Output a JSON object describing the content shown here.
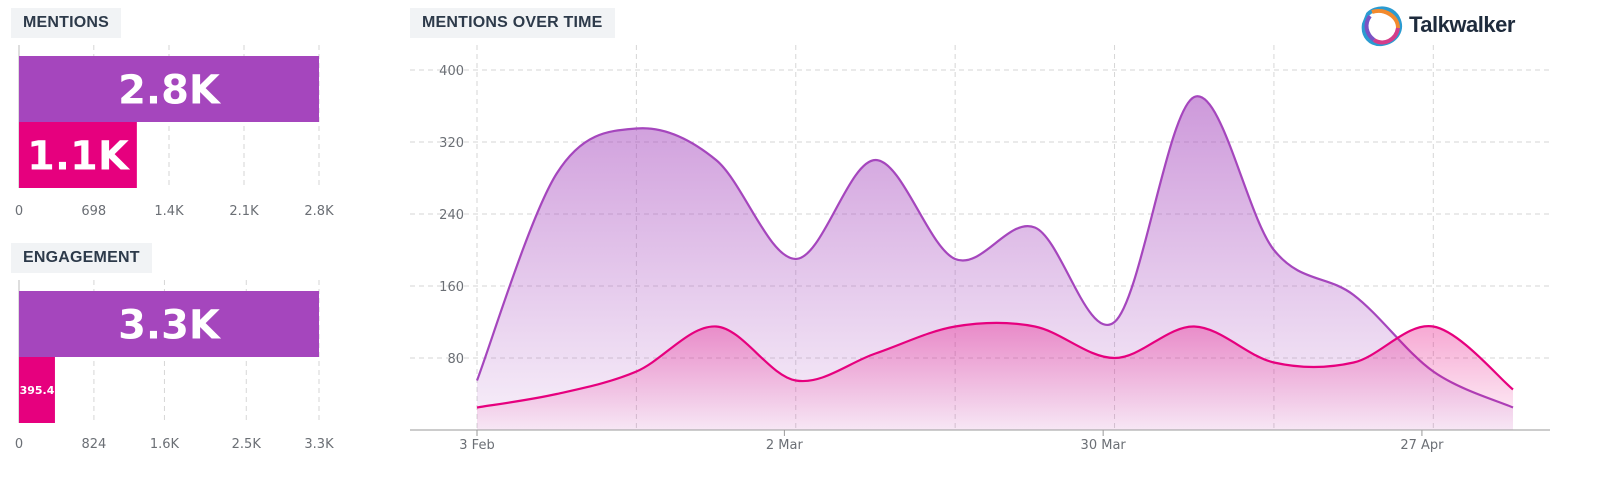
{
  "brand": {
    "name": "Talkwalker",
    "colors": [
      "#2b9bd1",
      "#f28a2e",
      "#d43d8a",
      "#7a53c4"
    ]
  },
  "colors": {
    "purple": "#a546bd",
    "pink": "#e6007e",
    "grid": "#d6d6d6"
  },
  "chart_data": [
    {
      "type": "bar",
      "title": "MENTIONS",
      "values": [
        2800,
        1100
      ],
      "value_labels": [
        "2.8K",
        "1.1K"
      ],
      "xlim": [
        0,
        2800
      ],
      "ticks": [
        0,
        698,
        1400,
        2100,
        2800
      ],
      "tick_labels": [
        "0",
        "698",
        "1.4K",
        "2.1K",
        "2.8K"
      ]
    },
    {
      "type": "bar",
      "title": "ENGAGEMENT",
      "values": [
        3300,
        395.4
      ],
      "value_labels": [
        "3.3K",
        "395.4"
      ],
      "xlim": [
        0,
        3300
      ],
      "ticks": [
        0,
        824,
        1600,
        2500,
        3300
      ],
      "tick_labels": [
        "0",
        "824",
        "1.6K",
        "2.5K",
        "3.3K"
      ]
    },
    {
      "type": "area",
      "title": "MENTIONS OVER TIME",
      "x": [
        "2021-02-03",
        "2021-02-10",
        "2021-02-17",
        "2021-02-24",
        "2021-03-03",
        "2021-03-10",
        "2021-03-17",
        "2021-03-24",
        "2021-03-31",
        "2021-04-07",
        "2021-04-14",
        "2021-04-21",
        "2021-04-28",
        "2021-05-05"
      ],
      "series": [
        {
          "values": [
            55,
            285,
            335,
            300,
            190,
            300,
            190,
            225,
            120,
            370,
            200,
            150,
            65,
            25
          ]
        },
        {
          "values": [
            25,
            40,
            65,
            115,
            55,
            85,
            115,
            115,
            80,
            115,
            75,
            75,
            115,
            45
          ]
        }
      ],
      "ylim": [
        0,
        400
      ],
      "yticks": [
        80,
        160,
        240,
        320,
        400
      ],
      "xtick_labels": [
        {
          "date": "2021-02-03",
          "label": "3 Feb"
        },
        {
          "date": "2021-03-02",
          "label": "2 Mar"
        },
        {
          "date": "2021-03-30",
          "label": "30 Mar"
        },
        {
          "date": "2021-04-27",
          "label": "27 Apr"
        }
      ],
      "grid": true
    }
  ]
}
